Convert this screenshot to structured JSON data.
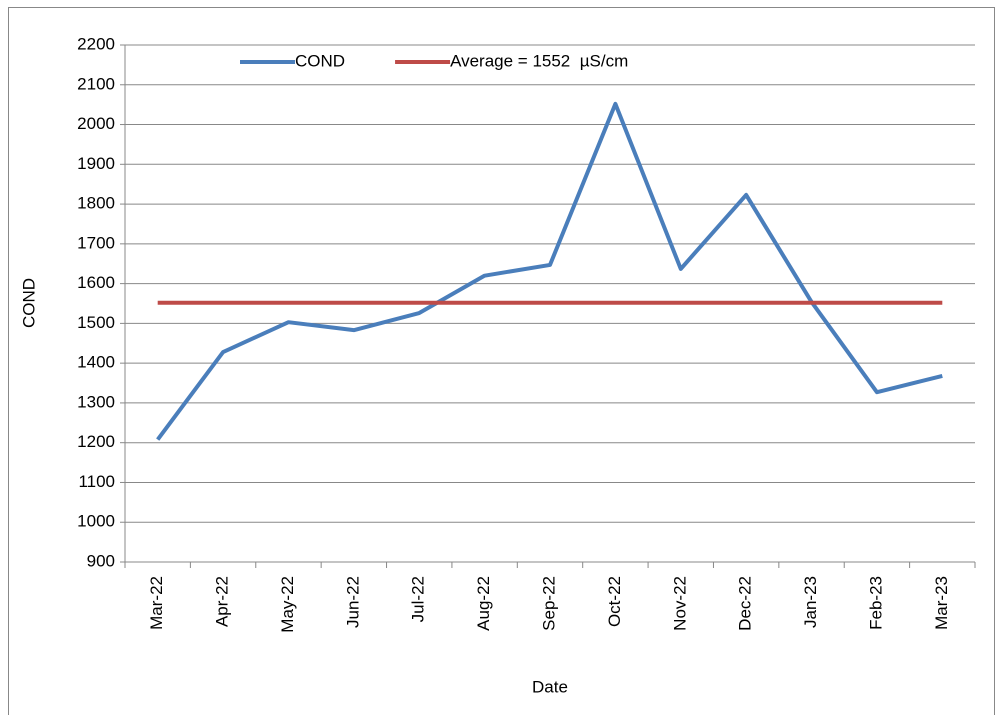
{
  "chart_data": {
    "type": "line",
    "categories": [
      "Mar-22",
      "Apr-22",
      "May-22",
      "Jun-22",
      "Jul-22",
      "Aug-22",
      "Sep-22",
      "Oct-22",
      "Nov-22",
      "Dec-22",
      "Jan-23",
      "Feb-23",
      "Mar-23"
    ],
    "series": [
      {
        "name": "COND",
        "color": "#4a7ebb",
        "values": [
          1208,
          1428,
          1503,
          1483,
          1526,
          1620,
          1647,
          2052,
          1637,
          1823,
          1554,
          1327,
          1368
        ]
      },
      {
        "name": "Average = 1552  µS/cm",
        "color": "#be4b48",
        "values": [
          1552,
          1552,
          1552,
          1552,
          1552,
          1552,
          1552,
          1552,
          1552,
          1552,
          1552,
          1552,
          1552
        ]
      }
    ],
    "ylabel": "COND",
    "xlabel": "Date",
    "ylim": [
      900,
      2200
    ],
    "yticks": [
      900,
      1000,
      1100,
      1200,
      1300,
      1400,
      1500,
      1600,
      1700,
      1800,
      1900,
      2000,
      2100,
      2200
    ],
    "grid": true,
    "legend": "top"
  }
}
